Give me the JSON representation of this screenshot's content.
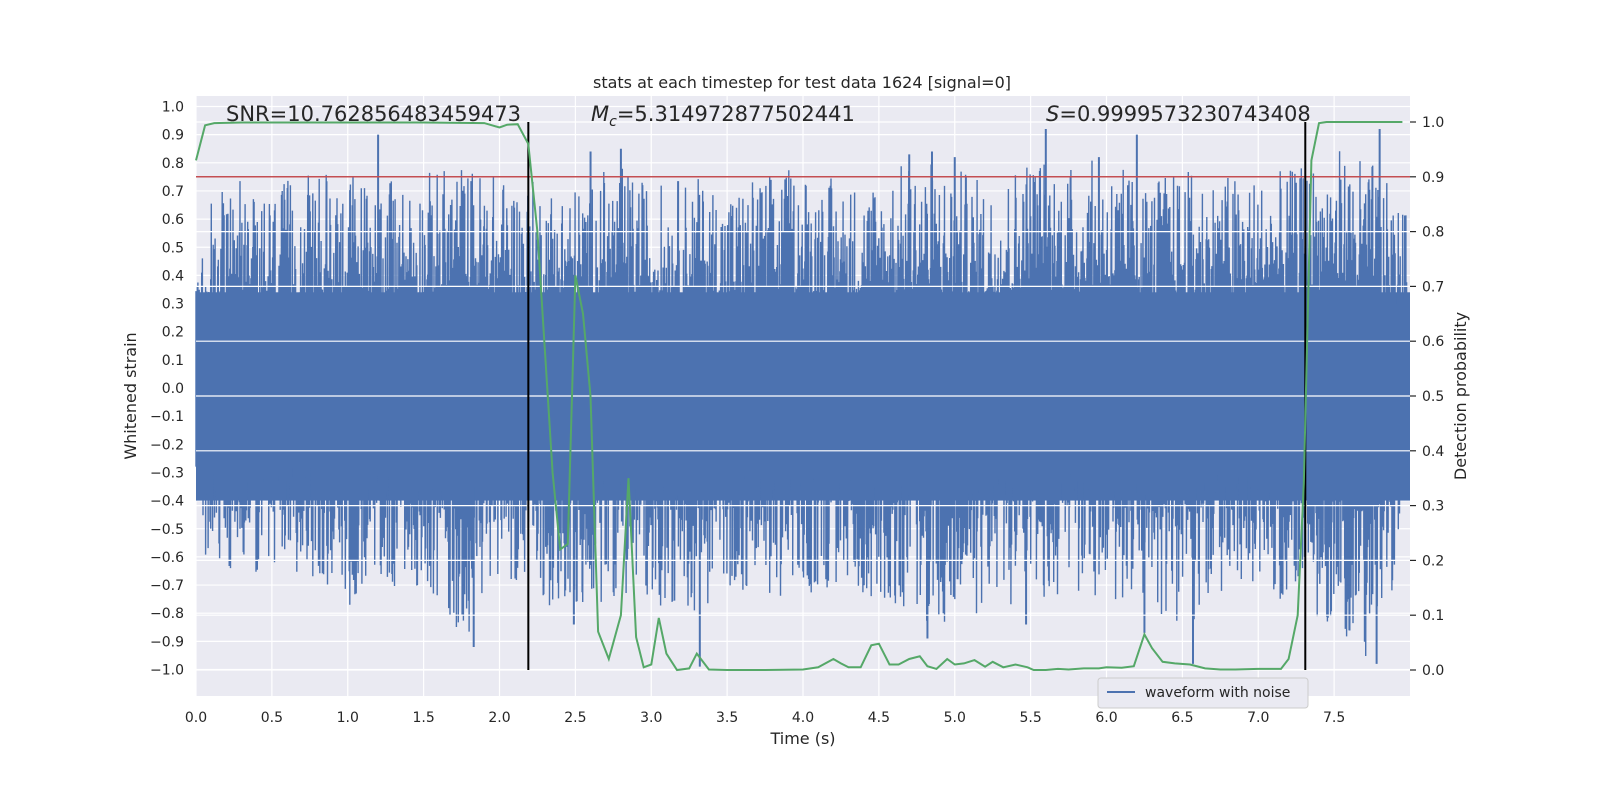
{
  "chart_data": {
    "type": "line",
    "title": "stats at each timestep for test data 1624 [signal=0]",
    "xlabel": "Time (s)",
    "ylabel_left": "Whitened strain",
    "ylabel_right": "Detection probability",
    "xlim": [
      0.0,
      8.0
    ],
    "ylim_left": [
      -1.09,
      1.04
    ],
    "ylim_right": [
      -0.05,
      1.03
    ],
    "xticks": [
      "0.0",
      "0.5",
      "1.0",
      "1.5",
      "2.0",
      "2.5",
      "3.0",
      "3.5",
      "4.0",
      "4.5",
      "5.0",
      "5.5",
      "6.0",
      "6.5",
      "7.0",
      "7.5"
    ],
    "yticks_left": [
      "1.0",
      "0.9",
      "0.8",
      "0.7",
      "0.6",
      "0.5",
      "0.4",
      "0.3",
      "0.2",
      "0.1",
      "0.0",
      "-0.1",
      "-0.2",
      "-0.3",
      "-0.4",
      "-0.5",
      "-0.6",
      "-0.7",
      "-0.8",
      "-0.9",
      "-1.0"
    ],
    "yticks_right": [
      "1.0",
      "0.9",
      "0.8",
      "0.7",
      "0.6",
      "0.5",
      "0.4",
      "0.3",
      "0.2",
      "0.1",
      "0.0"
    ],
    "annotations": {
      "snr": "SNR=10.762856483459473",
      "mc_symbol": "M",
      "mc_sub": "c",
      "mc_value": "=5.314972877502441",
      "s_symbol": "S",
      "s_value": "=0.9999573230743408"
    },
    "threshold_right": 0.9,
    "vlines_x": [
      2.19,
      7.31
    ],
    "legend": {
      "label": "waveform with noise",
      "position": "lower-right"
    },
    "colors": {
      "background": "#eaeaf2",
      "grid": "#ffffff",
      "waveform": "#4c72b0",
      "probability": "#55a868",
      "threshold": "#c44e52",
      "vline": "#000000"
    },
    "waveform_envelope": {
      "description_note": "",
      "t": [
        0.0,
        0.25,
        0.5,
        0.75,
        1.0,
        1.25,
        1.5,
        1.75,
        2.0,
        2.25,
        2.5,
        2.75,
        3.0,
        3.25,
        3.5,
        3.75,
        4.0,
        4.25,
        4.5,
        4.75,
        5.0,
        5.25,
        5.5,
        5.75,
        6.0,
        6.25,
        6.5,
        6.75,
        7.0,
        7.25,
        7.5,
        7.75,
        8.0
      ],
      "upper": [
        0.62,
        0.74,
        0.72,
        0.76,
        0.79,
        0.73,
        0.77,
        0.81,
        0.76,
        0.74,
        0.73,
        0.8,
        0.73,
        0.76,
        0.72,
        0.77,
        0.79,
        0.74,
        0.76,
        0.83,
        0.79,
        0.73,
        0.86,
        0.8,
        0.82,
        0.75,
        0.78,
        0.77,
        0.76,
        0.78,
        0.86,
        0.81,
        0.6
      ],
      "lower": [
        -0.66,
        -0.64,
        -0.68,
        -0.66,
        -0.78,
        -0.72,
        -0.7,
        -0.92,
        -0.65,
        -0.75,
        -0.84,
        -0.74,
        -0.76,
        -0.82,
        -0.72,
        -0.74,
        -0.76,
        -0.72,
        -0.75,
        -0.82,
        -0.88,
        -0.76,
        -0.8,
        -0.72,
        -0.8,
        -0.74,
        -0.9,
        -0.72,
        -0.74,
        -0.78,
        -0.86,
        -0.98,
        -0.52
      ],
      "peaks": [
        {
          "x": 1.2,
          "y": 0.9
        },
        {
          "x": 2.6,
          "y": 0.84
        },
        {
          "x": 2.8,
          "y": 0.85
        },
        {
          "x": 4.7,
          "y": 0.83
        },
        {
          "x": 4.85,
          "y": 0.84
        },
        {
          "x": 5.0,
          "y": 0.82
        },
        {
          "x": 5.6,
          "y": 0.92
        },
        {
          "x": 5.95,
          "y": 0.82
        },
        {
          "x": 6.2,
          "y": 0.9
        },
        {
          "x": 7.8,
          "y": 0.92
        },
        {
          "x": 1.83,
          "y": -0.92
        },
        {
          "x": 3.32,
          "y": -0.99
        },
        {
          "x": 4.82,
          "y": -0.89
        },
        {
          "x": 6.25,
          "y": -0.87
        },
        {
          "x": 6.57,
          "y": -0.98
        },
        {
          "x": 7.78,
          "y": -0.98
        },
        {
          "x": 5.47,
          "y": -0.84
        },
        {
          "x": 2.49,
          "y": -0.84
        }
      ]
    },
    "probability": {
      "x": [
        0.0,
        0.06,
        0.12,
        0.3,
        0.6,
        1.0,
        1.5,
        1.9,
        2.0,
        2.05,
        2.12,
        2.19,
        2.25,
        2.3,
        2.35,
        2.4,
        2.45,
        2.5,
        2.55,
        2.6,
        2.65,
        2.72,
        2.8,
        2.85,
        2.9,
        2.95,
        3.0,
        3.05,
        3.1,
        3.17,
        3.25,
        3.3,
        3.38,
        3.5,
        3.75,
        4.0,
        4.1,
        4.2,
        4.25,
        4.3,
        4.38,
        4.45,
        4.5,
        4.57,
        4.63,
        4.7,
        4.77,
        4.82,
        4.88,
        4.95,
        5.0,
        5.06,
        5.13,
        5.2,
        5.25,
        5.32,
        5.4,
        5.48,
        5.52,
        5.6,
        5.68,
        5.75,
        5.85,
        5.95,
        6.0,
        6.1,
        6.18,
        6.25,
        6.3,
        6.37,
        6.45,
        6.55,
        6.65,
        6.75,
        6.85,
        7.0,
        7.15,
        7.2,
        7.26,
        7.3,
        7.35,
        7.4,
        7.45,
        7.55,
        7.8,
        7.95
      ],
      "y": [
        0.93,
        0.994,
        0.998,
        0.999,
        0.999,
        0.999,
        0.999,
        0.998,
        0.99,
        0.995,
        0.996,
        0.96,
        0.8,
        0.58,
        0.36,
        0.22,
        0.23,
        0.72,
        0.65,
        0.5,
        0.07,
        0.02,
        0.1,
        0.35,
        0.06,
        0.005,
        0.01,
        0.095,
        0.03,
        0.0,
        0.003,
        0.03,
        0.001,
        0.0,
        0.0,
        0.001,
        0.005,
        0.02,
        0.012,
        0.005,
        0.005,
        0.045,
        0.048,
        0.01,
        0.01,
        0.02,
        0.025,
        0.007,
        0.002,
        0.02,
        0.01,
        0.012,
        0.018,
        0.006,
        0.015,
        0.005,
        0.01,
        0.005,
        0.0,
        0.0,
        0.002,
        0.001,
        0.003,
        0.003,
        0.005,
        0.004,
        0.007,
        0.065,
        0.04,
        0.015,
        0.012,
        0.01,
        0.003,
        0.001,
        0.001,
        0.002,
        0.002,
        0.02,
        0.1,
        0.34,
        0.93,
        0.998,
        1.0,
        1.0,
        1.0,
        1.0
      ]
    }
  }
}
